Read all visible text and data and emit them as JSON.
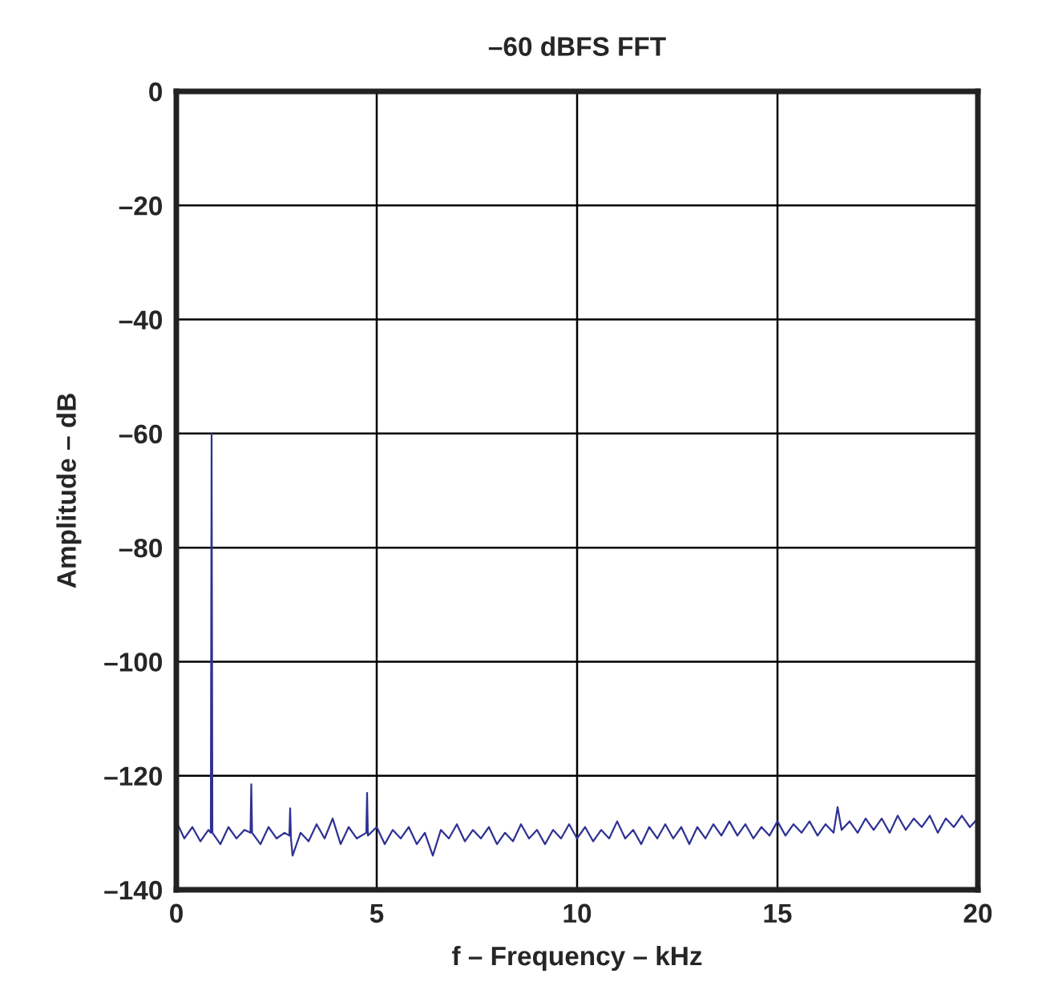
{
  "chart_data": {
    "type": "line",
    "title": "–60 dBFS FFT",
    "xlabel": "f – Frequency – kHz",
    "ylabel": "Amplitude – dB",
    "xlim": [
      0,
      20
    ],
    "xticks": [
      0,
      5,
      10,
      15,
      20
    ],
    "ylim": [
      -140,
      0
    ],
    "yticks": [
      0,
      {
        "value": -20,
        "label": "–20"
      },
      {
        "value": -40,
        "label": "–40"
      },
      {
        "value": -60,
        "label": "–60"
      },
      {
        "value": -80,
        "label": "–80"
      },
      {
        "value": -100,
        "label": "–100"
      },
      {
        "value": -120,
        "label": "–120"
      },
      {
        "value": -140,
        "label": "–140"
      }
    ],
    "grid": true,
    "marker": "none",
    "line_style": "solid",
    "series": [
      {
        "color": "#2e3192",
        "x": [
          0,
          0.2,
          0.4,
          0.6,
          0.8,
          0.86,
          0.88,
          0.9,
          1.1,
          1.3,
          1.5,
          1.7,
          1.85,
          1.87,
          1.89,
          2.1,
          2.3,
          2.5,
          2.7,
          2.82,
          2.84,
          2.86,
          2.9,
          3.1,
          3.3,
          3.5,
          3.7,
          3.9,
          4.1,
          4.3,
          4.5,
          4.74,
          4.76,
          4.78,
          5.0,
          5.2,
          5.4,
          5.6,
          5.8,
          6.0,
          6.2,
          6.4,
          6.6,
          6.8,
          7.0,
          7.2,
          7.4,
          7.6,
          7.8,
          8.0,
          8.2,
          8.4,
          8.6,
          8.8,
          9.0,
          9.2,
          9.4,
          9.6,
          9.8,
          10.0,
          10.2,
          10.4,
          10.6,
          10.8,
          11.0,
          11.2,
          11.4,
          11.6,
          11.8,
          12.0,
          12.2,
          12.4,
          12.6,
          12.8,
          13.0,
          13.2,
          13.4,
          13.6,
          13.8,
          14.0,
          14.2,
          14.4,
          14.6,
          14.8,
          15.0,
          15.2,
          15.4,
          15.6,
          15.8,
          16.0,
          16.2,
          16.4,
          16.5,
          16.6,
          16.8,
          17.0,
          17.2,
          17.4,
          17.6,
          17.8,
          18.0,
          18.2,
          18.4,
          18.6,
          18.8,
          19.0,
          19.2,
          19.4,
          19.6,
          19.8,
          20.0
        ],
        "values": [
          -128,
          -131,
          -129,
          -131.5,
          -129.5,
          -130,
          -60,
          -130,
          -132,
          -129,
          -131,
          -129.5,
          -130,
          -121.5,
          -130,
          -132,
          -129,
          -131,
          -130,
          -130.5,
          -125.7,
          -131,
          -134,
          -130,
          -131.5,
          -128.5,
          -131,
          -127.5,
          -132,
          -129,
          -131,
          -130,
          -123,
          -130.5,
          -129,
          -132,
          -129.5,
          -131,
          -129,
          -132,
          -130,
          -134,
          -129.5,
          -131,
          -128.5,
          -131.5,
          -129.5,
          -131,
          -129,
          -132,
          -130,
          -131.5,
          -128.5,
          -131,
          -129.5,
          -132,
          -129.5,
          -131,
          -128.5,
          -131,
          -129,
          -131.5,
          -129.5,
          -131,
          -128,
          -131,
          -129.5,
          -132,
          -129,
          -131,
          -128.5,
          -131,
          -129,
          -132,
          -129,
          -131,
          -128.5,
          -130.5,
          -128,
          -130.5,
          -128.5,
          -131,
          -129,
          -130.5,
          -128,
          -130.5,
          -128.5,
          -130,
          -128,
          -130.5,
          -128.5,
          -130,
          -125.5,
          -129.5,
          -128,
          -130,
          -127.5,
          -129.5,
          -127.5,
          -130,
          -127,
          -129.5,
          -127.5,
          -129,
          -127,
          -130,
          -127.5,
          -129,
          -127,
          -129,
          -127.5
        ]
      }
    ]
  }
}
